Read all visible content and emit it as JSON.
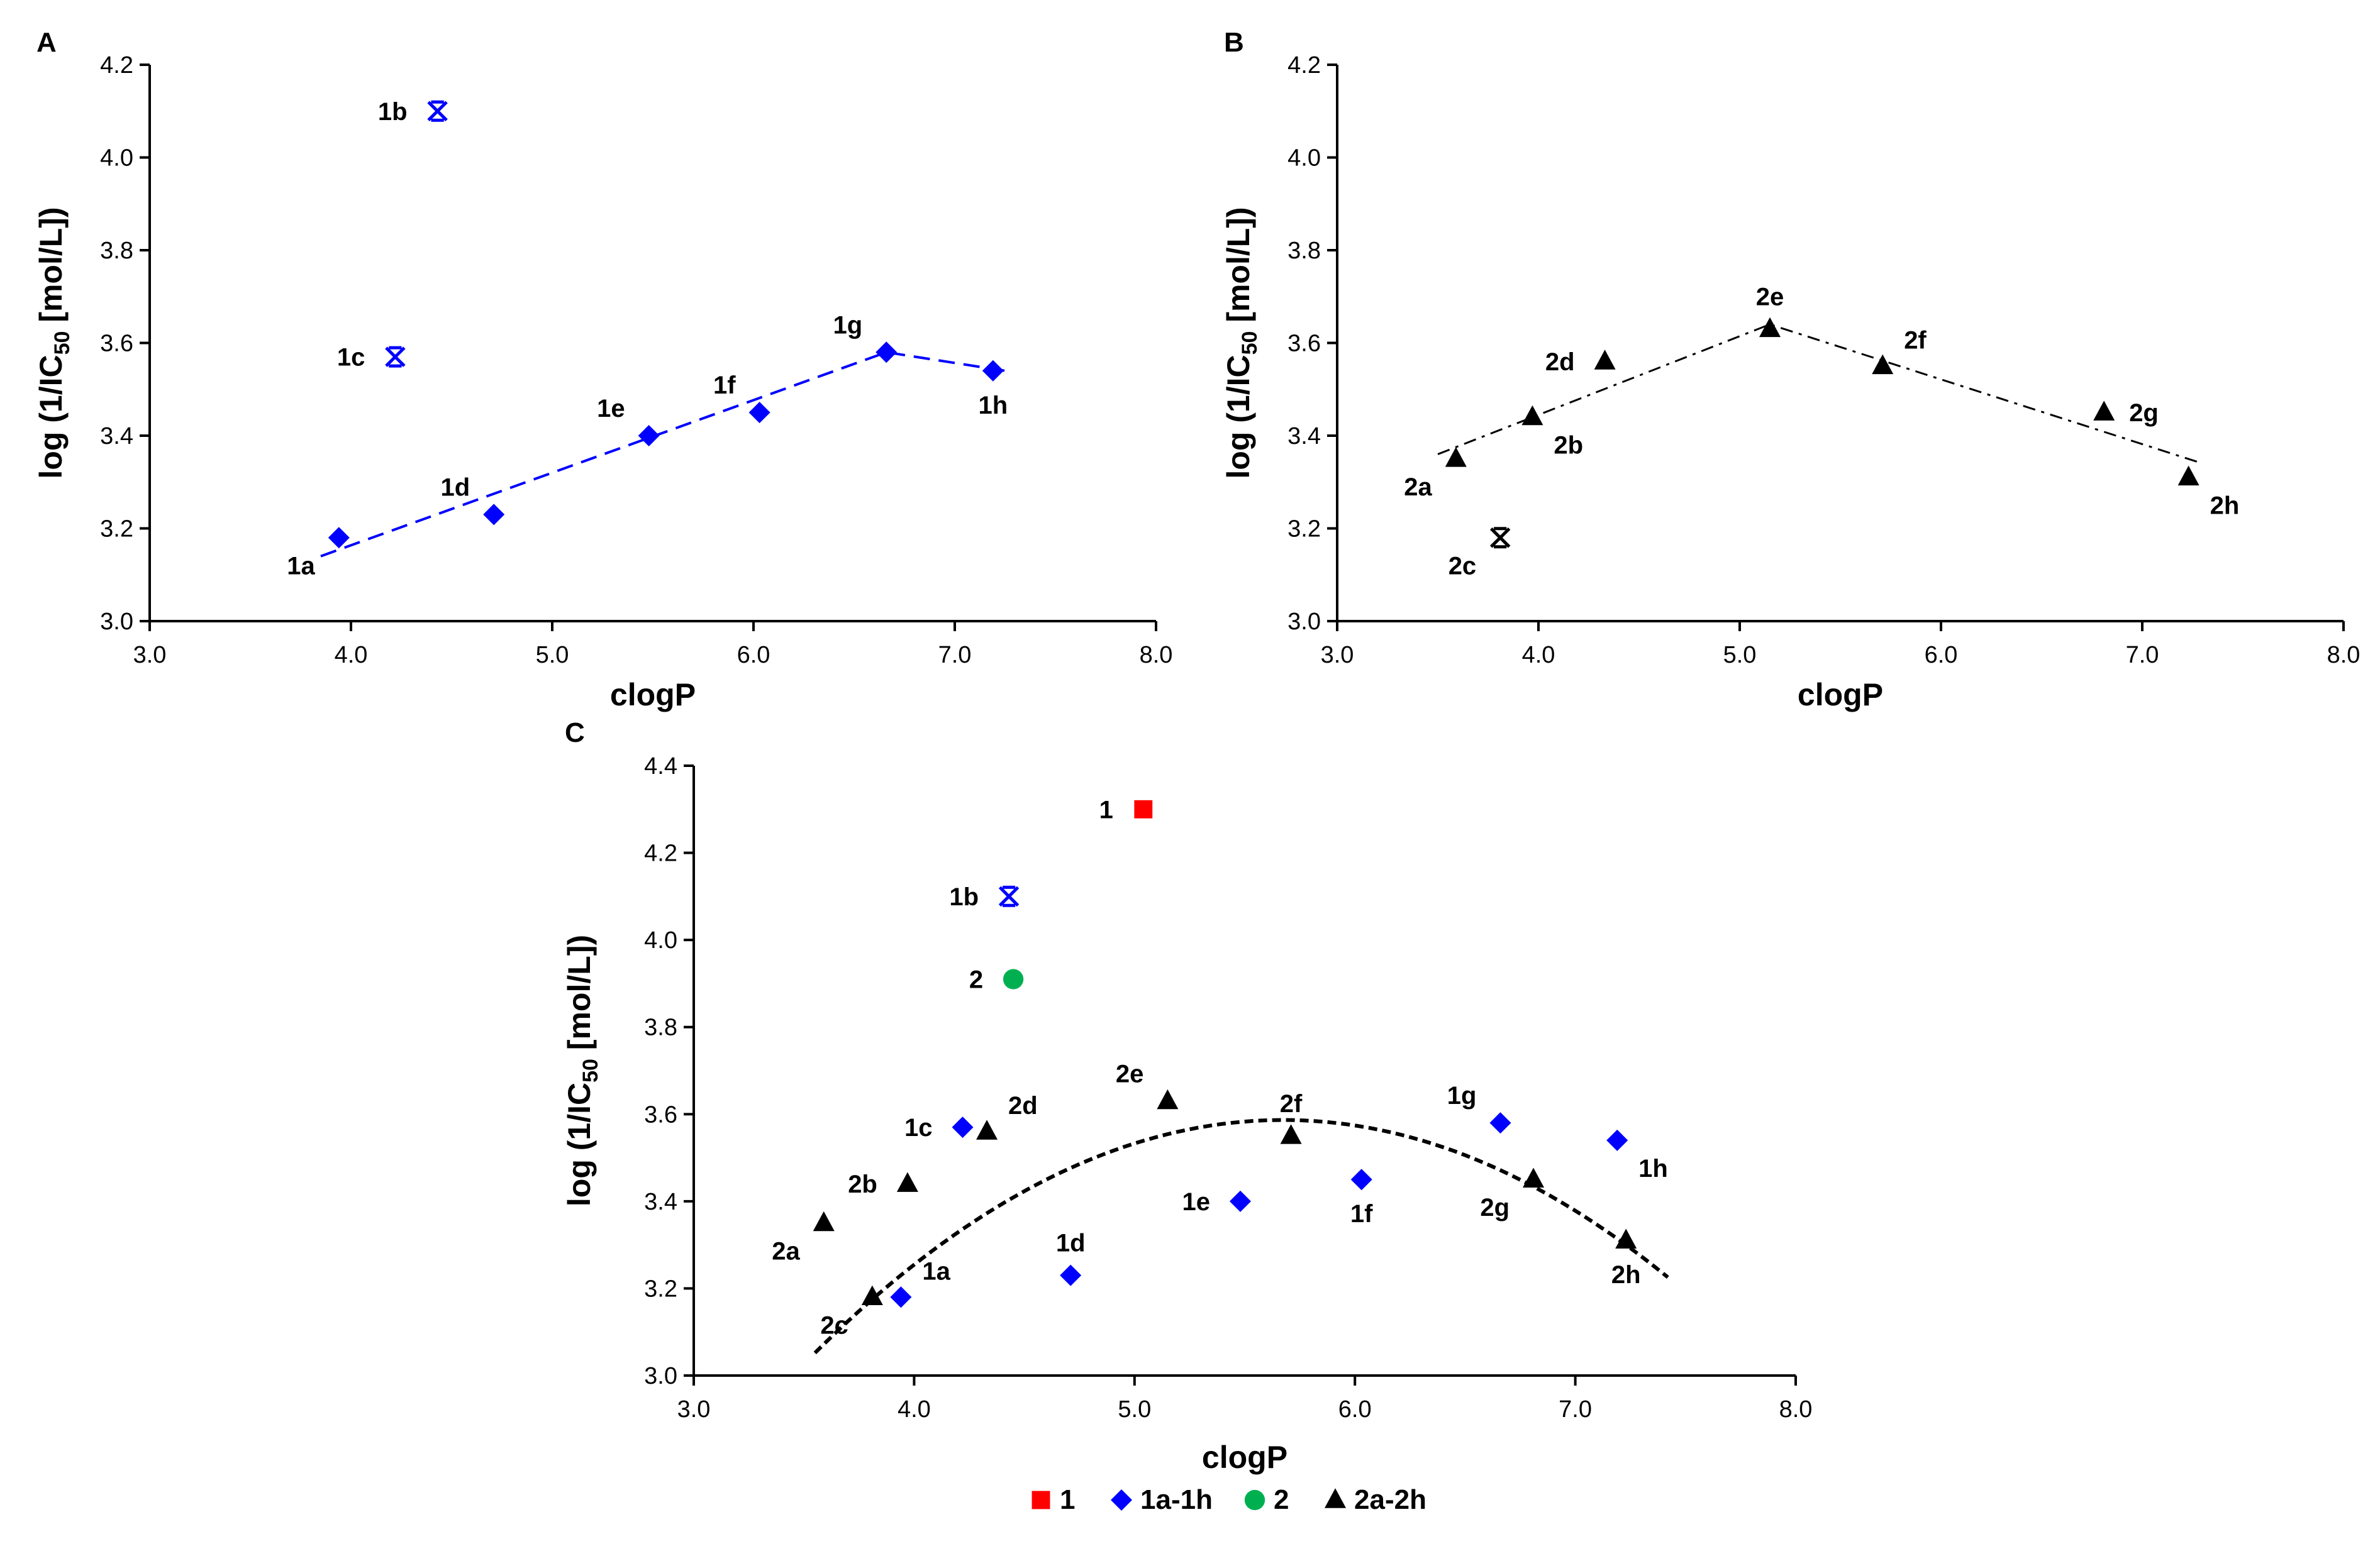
{
  "chart_data": [
    {
      "panel": "A",
      "type": "scatter",
      "xlabel": "clogP",
      "ylabel_main": "log (1/IC",
      "ylabel_sub": "50",
      "ylabel_end": " [mol/L])",
      "xlim": [
        3.0,
        8.0
      ],
      "ylim": [
        3.0,
        4.2
      ],
      "xticks": [
        "3.0",
        "4.0",
        "5.0",
        "6.0",
        "7.0",
        "8.0"
      ],
      "yticks": [
        "3.0",
        "3.2",
        "3.4",
        "3.6",
        "3.8",
        "4.0",
        "4.2"
      ],
      "xtick_values": [
        3,
        4,
        5,
        6,
        7,
        8
      ],
      "ytick_values": [
        3.0,
        3.2,
        3.4,
        3.6,
        3.8,
        4.0,
        4.2
      ],
      "points": [
        {
          "label": "1a",
          "x": 3.94,
          "y": 3.18,
          "marker": "diamond",
          "color": "#0000ff",
          "lpos": "below-left"
        },
        {
          "label": "1b",
          "x": 4.43,
          "y": 4.1,
          "marker": "asterisk",
          "color": "#0000ff",
          "lpos": "left"
        },
        {
          "label": "1c",
          "x": 4.22,
          "y": 3.57,
          "marker": "asterisk",
          "color": "#0000ff",
          "lpos": "left"
        },
        {
          "label": "1d",
          "x": 4.71,
          "y": 3.23,
          "marker": "diamond",
          "color": "#0000ff",
          "lpos": "above-left"
        },
        {
          "label": "1e",
          "x": 5.48,
          "y": 3.4,
          "marker": "diamond",
          "color": "#0000ff",
          "lpos": "above-left"
        },
        {
          "label": "1f",
          "x": 6.03,
          "y": 3.45,
          "marker": "diamond",
          "color": "#0000ff",
          "lpos": "above-left"
        },
        {
          "label": "1g",
          "x": 6.66,
          "y": 3.58,
          "marker": "diamond",
          "color": "#0000ff",
          "lpos": "above-left"
        },
        {
          "label": "1h",
          "x": 7.19,
          "y": 3.54,
          "marker": "diamond",
          "color": "#0000ff",
          "lpos": "below"
        }
      ],
      "fit_lines": [
        {
          "style": "dash",
          "color": "#0000ff",
          "points": [
            [
              3.85,
              3.14
            ],
            [
              6.66,
              3.58
            ],
            [
              7.25,
              3.54
            ]
          ]
        }
      ]
    },
    {
      "panel": "B",
      "type": "scatter",
      "xlabel": "clogP",
      "ylabel_main": "log (1/IC",
      "ylabel_sub": "50",
      "ylabel_end": " [mol/L])",
      "xlim": [
        3.0,
        8.0
      ],
      "ylim": [
        3.0,
        4.2
      ],
      "xticks": [
        "3.0",
        "4.0",
        "5.0",
        "6.0",
        "7.0",
        "8.0"
      ],
      "yticks": [
        "3.0",
        "3.2",
        "3.4",
        "3.6",
        "3.8",
        "4.0",
        "4.2"
      ],
      "xtick_values": [
        3,
        4,
        5,
        6,
        7,
        8
      ],
      "ytick_values": [
        3.0,
        3.2,
        3.4,
        3.6,
        3.8,
        4.0,
        4.2
      ],
      "points": [
        {
          "label": "2a",
          "x": 3.59,
          "y": 3.35,
          "marker": "triangle",
          "color": "#000000",
          "lpos": "below-left"
        },
        {
          "label": "2b",
          "x": 3.97,
          "y": 3.44,
          "marker": "triangle",
          "color": "#000000",
          "lpos": "below-right"
        },
        {
          "label": "2c",
          "x": 3.81,
          "y": 3.18,
          "marker": "asterisk",
          "color": "#000000",
          "lpos": "below-left"
        },
        {
          "label": "2d",
          "x": 4.33,
          "y": 3.56,
          "marker": "triangle",
          "color": "#000000",
          "lpos": "left"
        },
        {
          "label": "2e",
          "x": 5.15,
          "y": 3.63,
          "marker": "triangle",
          "color": "#000000",
          "lpos": "above"
        },
        {
          "label": "2f",
          "x": 5.71,
          "y": 3.55,
          "marker": "triangle",
          "color": "#000000",
          "lpos": "above-right"
        },
        {
          "label": "2g",
          "x": 6.81,
          "y": 3.45,
          "marker": "triangle",
          "color": "#000000",
          "lpos": "right"
        },
        {
          "label": "2h",
          "x": 7.23,
          "y": 3.31,
          "marker": "triangle",
          "color": "#000000",
          "lpos": "below-right"
        }
      ],
      "fit_lines": [
        {
          "style": "dashdot",
          "color": "#000000",
          "points": [
            [
              3.5,
              3.36
            ],
            [
              5.15,
              3.64
            ],
            [
              7.3,
              3.34
            ]
          ]
        }
      ]
    },
    {
      "panel": "C",
      "type": "scatter",
      "xlabel": "clogP",
      "ylabel_main": "log (1/IC",
      "ylabel_sub": "50",
      "ylabel_end": " [mol/L])",
      "xlim": [
        3.0,
        8.0
      ],
      "ylim": [
        3.0,
        4.4
      ],
      "xticks": [
        "3.0",
        "4.0",
        "5.0",
        "6.0",
        "7.0",
        "8.0"
      ],
      "yticks": [
        "3.0",
        "3.2",
        "3.4",
        "3.6",
        "3.8",
        "4.0",
        "4.2",
        "4.4"
      ],
      "xtick_values": [
        3,
        4,
        5,
        6,
        7,
        8
      ],
      "ytick_values": [
        3.0,
        3.2,
        3.4,
        3.6,
        3.8,
        4.0,
        4.2,
        4.4
      ],
      "points": [
        {
          "label": "1",
          "x": 5.04,
          "y": 4.3,
          "marker": "square",
          "color": "#ff0000",
          "lpos": "left"
        },
        {
          "label": "2",
          "x": 4.45,
          "y": 3.91,
          "marker": "circle",
          "color": "#00b050",
          "lpos": "left"
        },
        {
          "label": "1a",
          "x": 3.94,
          "y": 3.18,
          "marker": "diamond",
          "color": "#0000ff",
          "lpos": "above-right"
        },
        {
          "label": "1b",
          "x": 4.43,
          "y": 4.1,
          "marker": "asterisk",
          "color": "#0000ff",
          "lpos": "left"
        },
        {
          "label": "1c",
          "x": 4.22,
          "y": 3.57,
          "marker": "diamond",
          "color": "#0000ff",
          "lpos": "left"
        },
        {
          "label": "1d",
          "x": 4.71,
          "y": 3.23,
          "marker": "diamond",
          "color": "#0000ff",
          "lpos": "above"
        },
        {
          "label": "1e",
          "x": 5.48,
          "y": 3.4,
          "marker": "diamond",
          "color": "#0000ff",
          "lpos": "left"
        },
        {
          "label": "1f",
          "x": 6.03,
          "y": 3.45,
          "marker": "diamond",
          "color": "#0000ff",
          "lpos": "below"
        },
        {
          "label": "1g",
          "x": 6.66,
          "y": 3.58,
          "marker": "diamond",
          "color": "#0000ff",
          "lpos": "above-left"
        },
        {
          "label": "1h",
          "x": 7.19,
          "y": 3.54,
          "marker": "diamond",
          "color": "#0000ff",
          "lpos": "below-right"
        },
        {
          "label": "2a",
          "x": 3.59,
          "y": 3.35,
          "marker": "triangle",
          "color": "#000000",
          "lpos": "below-left"
        },
        {
          "label": "2b",
          "x": 3.97,
          "y": 3.44,
          "marker": "triangle",
          "color": "#000000",
          "lpos": "left"
        },
        {
          "label": "2c",
          "x": 3.81,
          "y": 3.18,
          "marker": "triangle",
          "color": "#000000",
          "lpos": "below-left"
        },
        {
          "label": "2d",
          "x": 4.33,
          "y": 3.56,
          "marker": "triangle",
          "color": "#000000",
          "lpos": "above-right"
        },
        {
          "label": "2e",
          "x": 5.15,
          "y": 3.63,
          "marker": "triangle",
          "color": "#000000",
          "lpos": "above-left"
        },
        {
          "label": "2f",
          "x": 5.71,
          "y": 3.55,
          "marker": "triangle",
          "color": "#000000",
          "lpos": "above"
        },
        {
          "label": "2g",
          "x": 6.81,
          "y": 3.45,
          "marker": "triangle",
          "color": "#000000",
          "lpos": "below-left"
        },
        {
          "label": "2h",
          "x": 7.23,
          "y": 3.31,
          "marker": "triangle",
          "color": "#000000",
          "lpos": "below"
        }
      ],
      "fit_lines": [
        {
          "style": "dash-black",
          "color": "#000000",
          "parabola": {
            "a": -0.1185,
            "b": 1.3448,
            "c": -0.2287
          },
          "x_range": [
            3.55,
            7.42
          ]
        }
      ],
      "legend": [
        {
          "label": "1",
          "marker": "square",
          "color": "#ff0000"
        },
        {
          "label": "1a-1h",
          "marker": "diamond",
          "color": "#0000ff"
        },
        {
          "label": "2",
          "marker": "circle",
          "color": "#00b050"
        },
        {
          "label": "2a-2h",
          "marker": "triangle",
          "color": "#000000"
        }
      ]
    }
  ]
}
